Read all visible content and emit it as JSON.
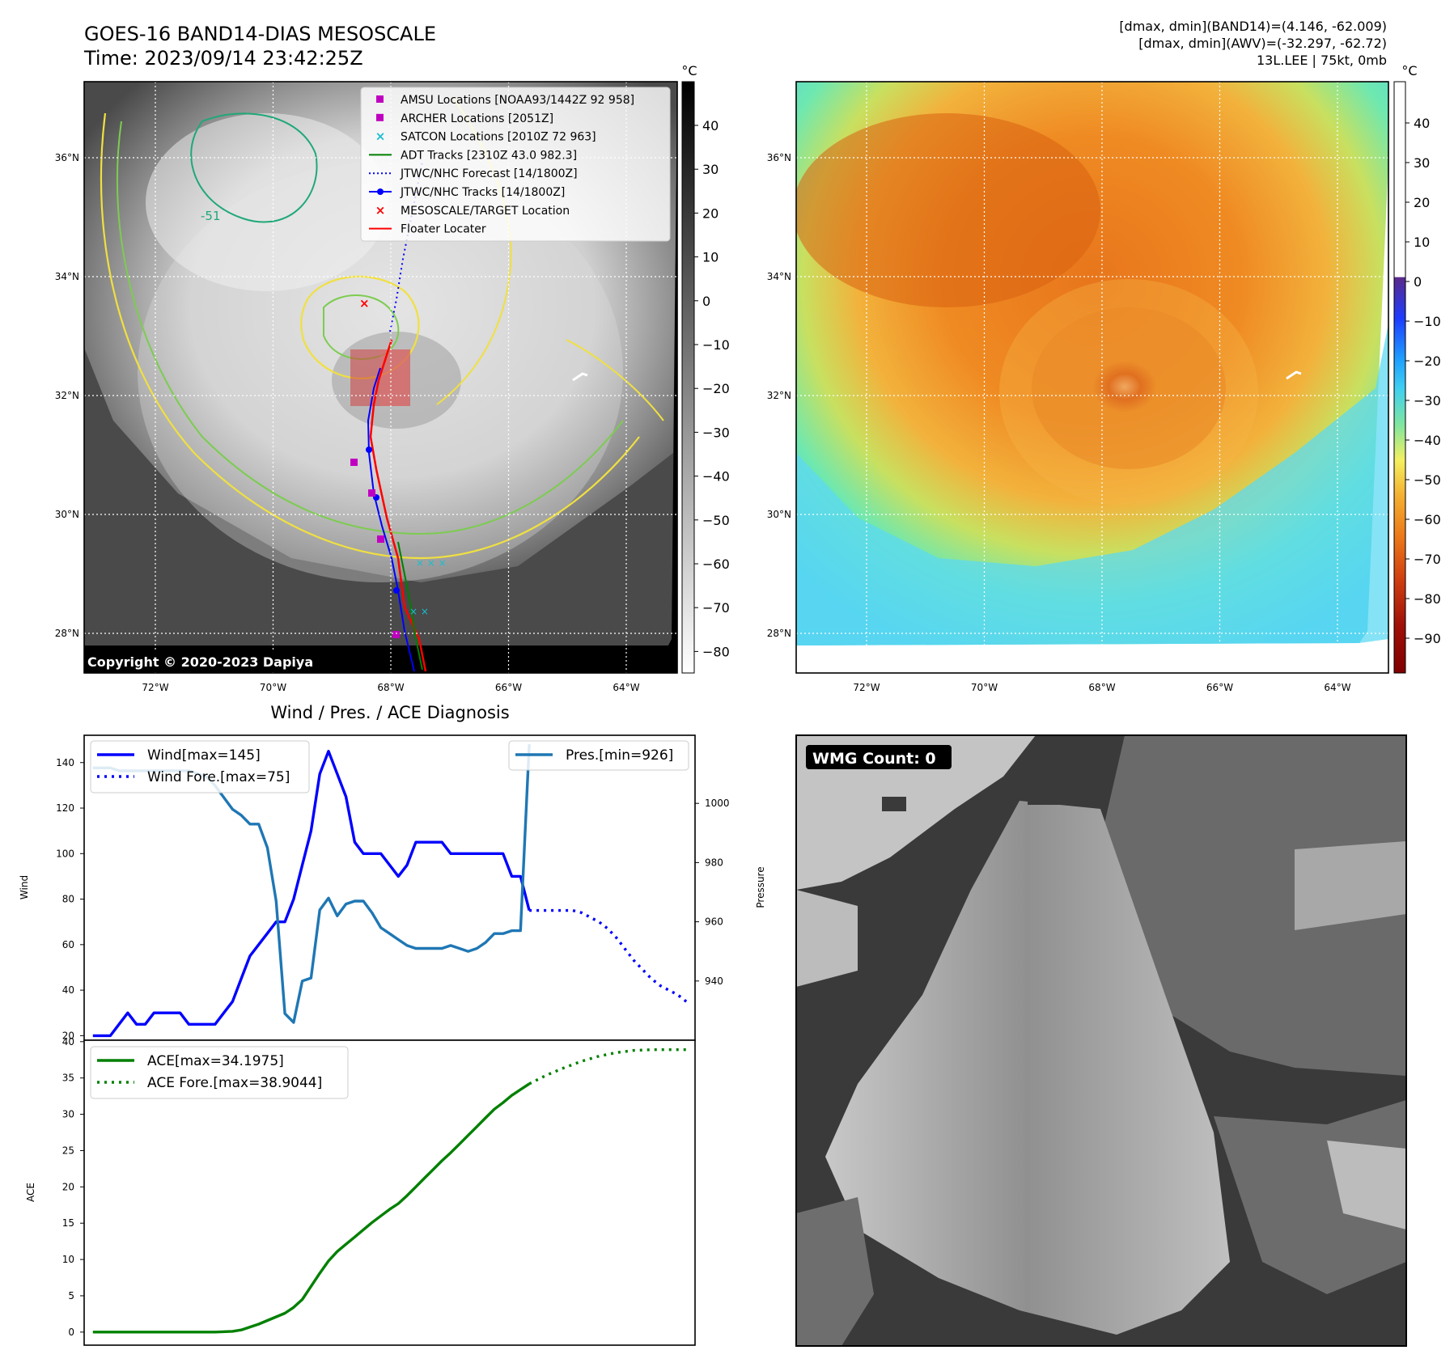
{
  "header": {
    "title_line1": "GOES-16 BAND14-DIAS MESOSCALE",
    "title_line2": "Time: 2023/09/14 23:42:25Z",
    "stats_line1": "[dmax, dmin](BAND14)=(4.146, -62.009)",
    "stats_line2": "[dmax, dmin](AWV)=(-32.297, -62.72)",
    "stats_line3": "13L.LEE | 75kt, 0mb"
  },
  "map_axes": {
    "lat_labels": [
      "36°N",
      "34°N",
      "32°N",
      "30°N",
      "28°N"
    ],
    "lon_labels": [
      "72°W",
      "70°W",
      "68°W",
      "66°W",
      "64°W"
    ],
    "lat_values": [
      36,
      34,
      32,
      30,
      28
    ],
    "lon_values": [
      -72,
      -70,
      -68,
      -66,
      -64
    ]
  },
  "ir_panel": {
    "copyright": "Copyright © 2020-2023 Dapiya",
    "colorbar_unit": "°C",
    "colorbar_ticks": [
      "40",
      "30",
      "20",
      "10",
      "0",
      "−10",
      "−20",
      "−30",
      "−40",
      "−50",
      "−60",
      "−70",
      "−80"
    ],
    "contour_label": "-51",
    "legend": [
      {
        "label": "AMSU Locations [NOAA93/1442Z 92 958]",
        "marker": "square",
        "color": "#c000c0"
      },
      {
        "label": "ARCHER Locations [2051Z]",
        "marker": "square",
        "color": "#c000c0"
      },
      {
        "label": "SATCON Locations [2010Z 72 963]",
        "marker": "x",
        "color": "#17becf"
      },
      {
        "label": "ADT Tracks [2310Z 43.0 982.3]",
        "marker": "line",
        "color": "#008000"
      },
      {
        "label": "JTWC/NHC Forecast [14/1800Z]",
        "marker": "dotted",
        "color": "#0000ff"
      },
      {
        "label": "JTWC/NHC Tracks [14/1800Z]",
        "marker": "line-dot",
        "color": "#0000ff"
      },
      {
        "label": "MESOSCALE/TARGET Location",
        "marker": "x",
        "color": "#ff0000"
      },
      {
        "label": "Floater Locater",
        "marker": "line",
        "color": "#ff0000"
      }
    ]
  },
  "awv_panel": {
    "colorbar_unit": "°C",
    "colorbar_ticks": [
      "40",
      "30",
      "20",
      "10",
      "0",
      "−10",
      "−20",
      "−30",
      "−40",
      "−50",
      "−60",
      "−70",
      "−80",
      "−90"
    ]
  },
  "wmg_panel": {
    "badge": "WMG Count: 0"
  },
  "chart_data": [
    {
      "type": "line",
      "title": "Wind / Pres. / ACE Diagnosis",
      "ylabel": "Wind",
      "ylabel_right": "Pressure",
      "ylim": [
        18,
        152
      ],
      "ylim_right": [
        920,
        1023
      ],
      "yticks": [
        20,
        40,
        60,
        80,
        100,
        120,
        140
      ],
      "yticks_right": [
        940,
        960,
        980,
        1000
      ],
      "xlim": [
        -1,
        69
      ],
      "series": [
        {
          "name": "Wind[max=145]",
          "axis": "left",
          "color": "#0000ff",
          "style": "solid",
          "x": [
            0,
            1,
            2,
            3,
            4,
            5,
            6,
            7,
            8,
            9,
            10,
            11,
            12,
            13,
            14,
            15,
            16,
            17,
            18,
            19,
            20,
            21,
            22,
            23,
            24,
            25,
            26,
            27,
            28,
            29,
            30,
            31,
            32,
            33,
            34,
            35,
            36,
            37,
            38,
            39,
            40,
            41,
            42,
            43,
            44,
            45,
            46,
            47,
            48,
            49,
            50
          ],
          "values": [
            20,
            20,
            20,
            25,
            30,
            25,
            25,
            30,
            30,
            30,
            30,
            25,
            25,
            25,
            25,
            30,
            35,
            45,
            55,
            60,
            65,
            70,
            70,
            80,
            95,
            110,
            135,
            145,
            135,
            125,
            105,
            100,
            100,
            100,
            95,
            90,
            95,
            105,
            105,
            105,
            105,
            100,
            100,
            100,
            100,
            100,
            100,
            100,
            90,
            90,
            75
          ]
        },
        {
          "name": "Wind Fore.[max=75]",
          "axis": "left",
          "color": "#0000ff",
          "style": "dotted",
          "x": [
            50,
            51,
            52,
            53,
            54,
            55,
            56,
            57,
            58,
            59,
            60,
            61,
            62,
            63,
            64,
            65,
            66,
            67,
            68
          ],
          "values": [
            75,
            75,
            75,
            75,
            75,
            75,
            74,
            72,
            70,
            67,
            63,
            58,
            53,
            49,
            45,
            42,
            40,
            38,
            35
          ]
        },
        {
          "name": "Pres.[min=926]",
          "axis": "right",
          "color": "#1f77b4",
          "style": "solid",
          "x": [
            0,
            1,
            2,
            3,
            4,
            5,
            6,
            7,
            8,
            9,
            10,
            11,
            12,
            13,
            14,
            15,
            16,
            17,
            18,
            19,
            20,
            21,
            22,
            23,
            24,
            25,
            26,
            27,
            28,
            29,
            30,
            31,
            32,
            33,
            34,
            35,
            36,
            37,
            38,
            39,
            40,
            41,
            42,
            43,
            44,
            45,
            46,
            47,
            48,
            49,
            50
          ],
          "values": [
            1012,
            1012,
            1012,
            1011,
            1011,
            1011,
            1011,
            1011,
            1011,
            1011,
            1011,
            1011,
            1010,
            1009,
            1006,
            1002,
            998,
            996,
            993,
            993,
            985,
            967,
            929,
            926,
            940,
            941,
            964,
            968,
            962,
            966,
            967,
            967,
            963,
            958,
            956,
            954,
            952,
            951,
            951,
            951,
            951,
            952,
            951,
            950,
            951,
            953,
            956,
            956,
            957,
            957,
            1020
          ]
        }
      ]
    },
    {
      "type": "line",
      "ylabel": "ACE",
      "ylim": [
        -1.8,
        40.2
      ],
      "yticks": [
        0,
        5,
        10,
        15,
        20,
        25,
        30,
        35,
        40
      ],
      "xlim": [
        -1,
        69
      ],
      "series": [
        {
          "name": "ACE[max=34.1975]",
          "color": "#008000",
          "style": "solid",
          "x": [
            0,
            2,
            4,
            6,
            8,
            10,
            12,
            14,
            16,
            17,
            18,
            19,
            20,
            21,
            22,
            23,
            24,
            25,
            26,
            27,
            28,
            29,
            30,
            31,
            32,
            33,
            34,
            35,
            36,
            37,
            38,
            39,
            40,
            41,
            42,
            43,
            44,
            45,
            46,
            47,
            48,
            49,
            50
          ],
          "values": [
            0,
            0,
            0,
            0,
            0,
            0,
            0,
            0,
            0.1,
            0.3,
            0.7,
            1.1,
            1.6,
            2.1,
            2.6,
            3.4,
            4.5,
            6.3,
            8.1,
            9.8,
            11.1,
            12.1,
            13.1,
            14.1,
            15.1,
            16.0,
            16.9,
            17.7,
            18.8,
            20.0,
            21.2,
            22.4,
            23.6,
            24.7,
            25.9,
            27.1,
            28.3,
            29.5,
            30.7,
            31.6,
            32.6,
            33.4,
            34.2
          ]
        },
        {
          "name": "ACE Fore.[max=38.9044]",
          "color": "#008000",
          "style": "dotted",
          "x": [
            50,
            52,
            54,
            56,
            58,
            60,
            62,
            64,
            66,
            68
          ],
          "values": [
            34.2,
            35.4,
            36.4,
            37.3,
            38.0,
            38.5,
            38.8,
            38.9,
            38.9,
            38.9
          ]
        }
      ]
    }
  ]
}
